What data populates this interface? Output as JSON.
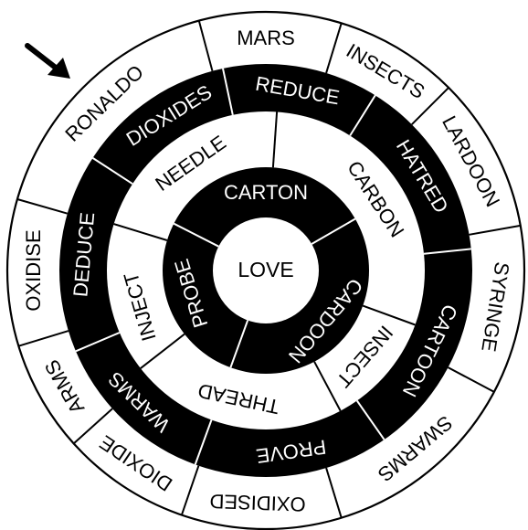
{
  "colors": {
    "ink": "#000000",
    "paper": "#ffffff"
  },
  "pointer": {
    "icon": "arrow-pointer-icon"
  },
  "center": {
    "label": "LOVE"
  },
  "rings": [
    {
      "name": "inner-ring",
      "fill": "dark",
      "words": [
        "CARTON",
        "CARDOON",
        "PROBE"
      ]
    },
    {
      "name": "second-ring",
      "fill": "light",
      "words": [
        "NEEDLE",
        "CARBON",
        "INSECT",
        "THREAD",
        "INJECT"
      ]
    },
    {
      "name": "third-ring",
      "fill": "dark",
      "words": [
        "DIOXIDES",
        "REDUCE",
        "HATRED",
        "CARTOON",
        "PROVE",
        "WARMS",
        "DEDUCE"
      ]
    },
    {
      "name": "outer-ring",
      "fill": "light",
      "words": [
        "MARS",
        "INSECTS",
        "LARDOON",
        "SYRINGE",
        "SWARMS",
        "OXIDISED",
        "DIOXIDE",
        "ARMS",
        "OXIDISE",
        "RONALDO"
      ]
    }
  ]
}
